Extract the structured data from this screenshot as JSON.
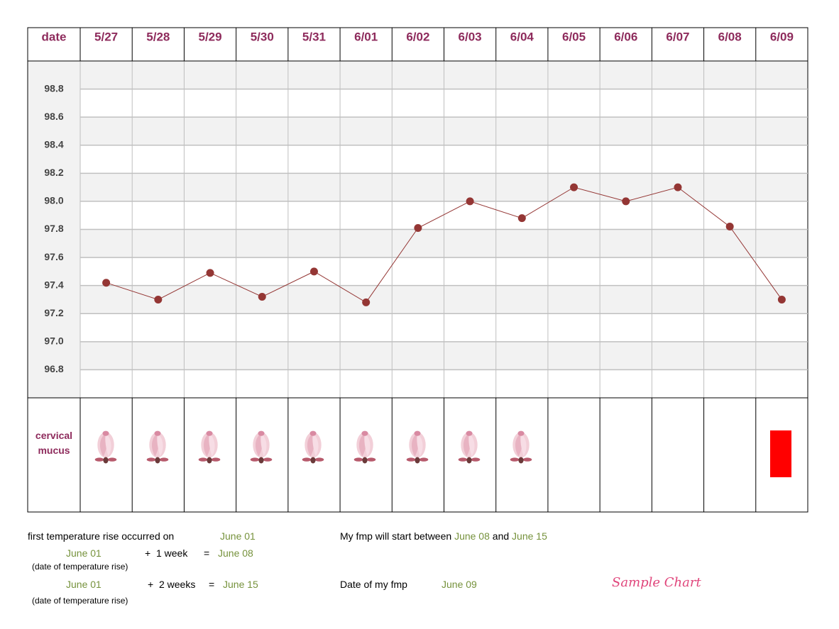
{
  "chart_data": {
    "type": "line",
    "x_label": "date",
    "categories": [
      "5/27",
      "5/28",
      "5/29",
      "5/30",
      "5/31",
      "6/01",
      "6/02",
      "6/03",
      "6/04",
      "6/05",
      "6/06",
      "6/07",
      "6/08",
      "6/09"
    ],
    "values": [
      97.42,
      97.3,
      97.49,
      97.32,
      97.5,
      97.28,
      97.81,
      98.0,
      97.88,
      98.1,
      98.0,
      98.1,
      97.82,
      97.3
    ],
    "color": "#943634",
    "ylim": [
      96.6,
      99.0
    ],
    "yticks": [
      {
        "value": 96.8,
        "label": "96.8"
      },
      {
        "value": 97.0,
        "label": "97.0"
      },
      {
        "value": 97.2,
        "label": "97.2"
      },
      {
        "value": 97.4,
        "label": "97.4"
      },
      {
        "value": 97.6,
        "label": "97.6"
      },
      {
        "value": 97.8,
        "label": "97.8"
      },
      {
        "value": 98.0,
        "label": "98.0"
      },
      {
        "value": 98.2,
        "label": "98.2"
      },
      {
        "value": 98.4,
        "label": "98.4"
      },
      {
        "value": 98.6,
        "label": "98.6"
      },
      {
        "value": 98.8,
        "label": "98.8"
      }
    ],
    "grid": true,
    "row_label": "cervical mucus"
  },
  "footer": {
    "rise_text": "first temperature rise occurred on",
    "rise_date": "June 01",
    "line1": {
      "date": "June 01",
      "plus": "+  1 week",
      "eq": "=",
      "result": "June 08",
      "note": "(date of temperature rise)"
    },
    "line2": {
      "date": "June 01",
      "plus": "+  2 weeks",
      "eq": "=",
      "result": "June 15",
      "note": "(date of temperature rise)"
    },
    "fmp_text": "My fmp will start between",
    "fmp_from": "June 08",
    "fmp_and": "and",
    "fmp_to": "June 15",
    "actual_text": "Date of my fmp",
    "actual_date": "June 09",
    "sample": "Sample Chart"
  }
}
